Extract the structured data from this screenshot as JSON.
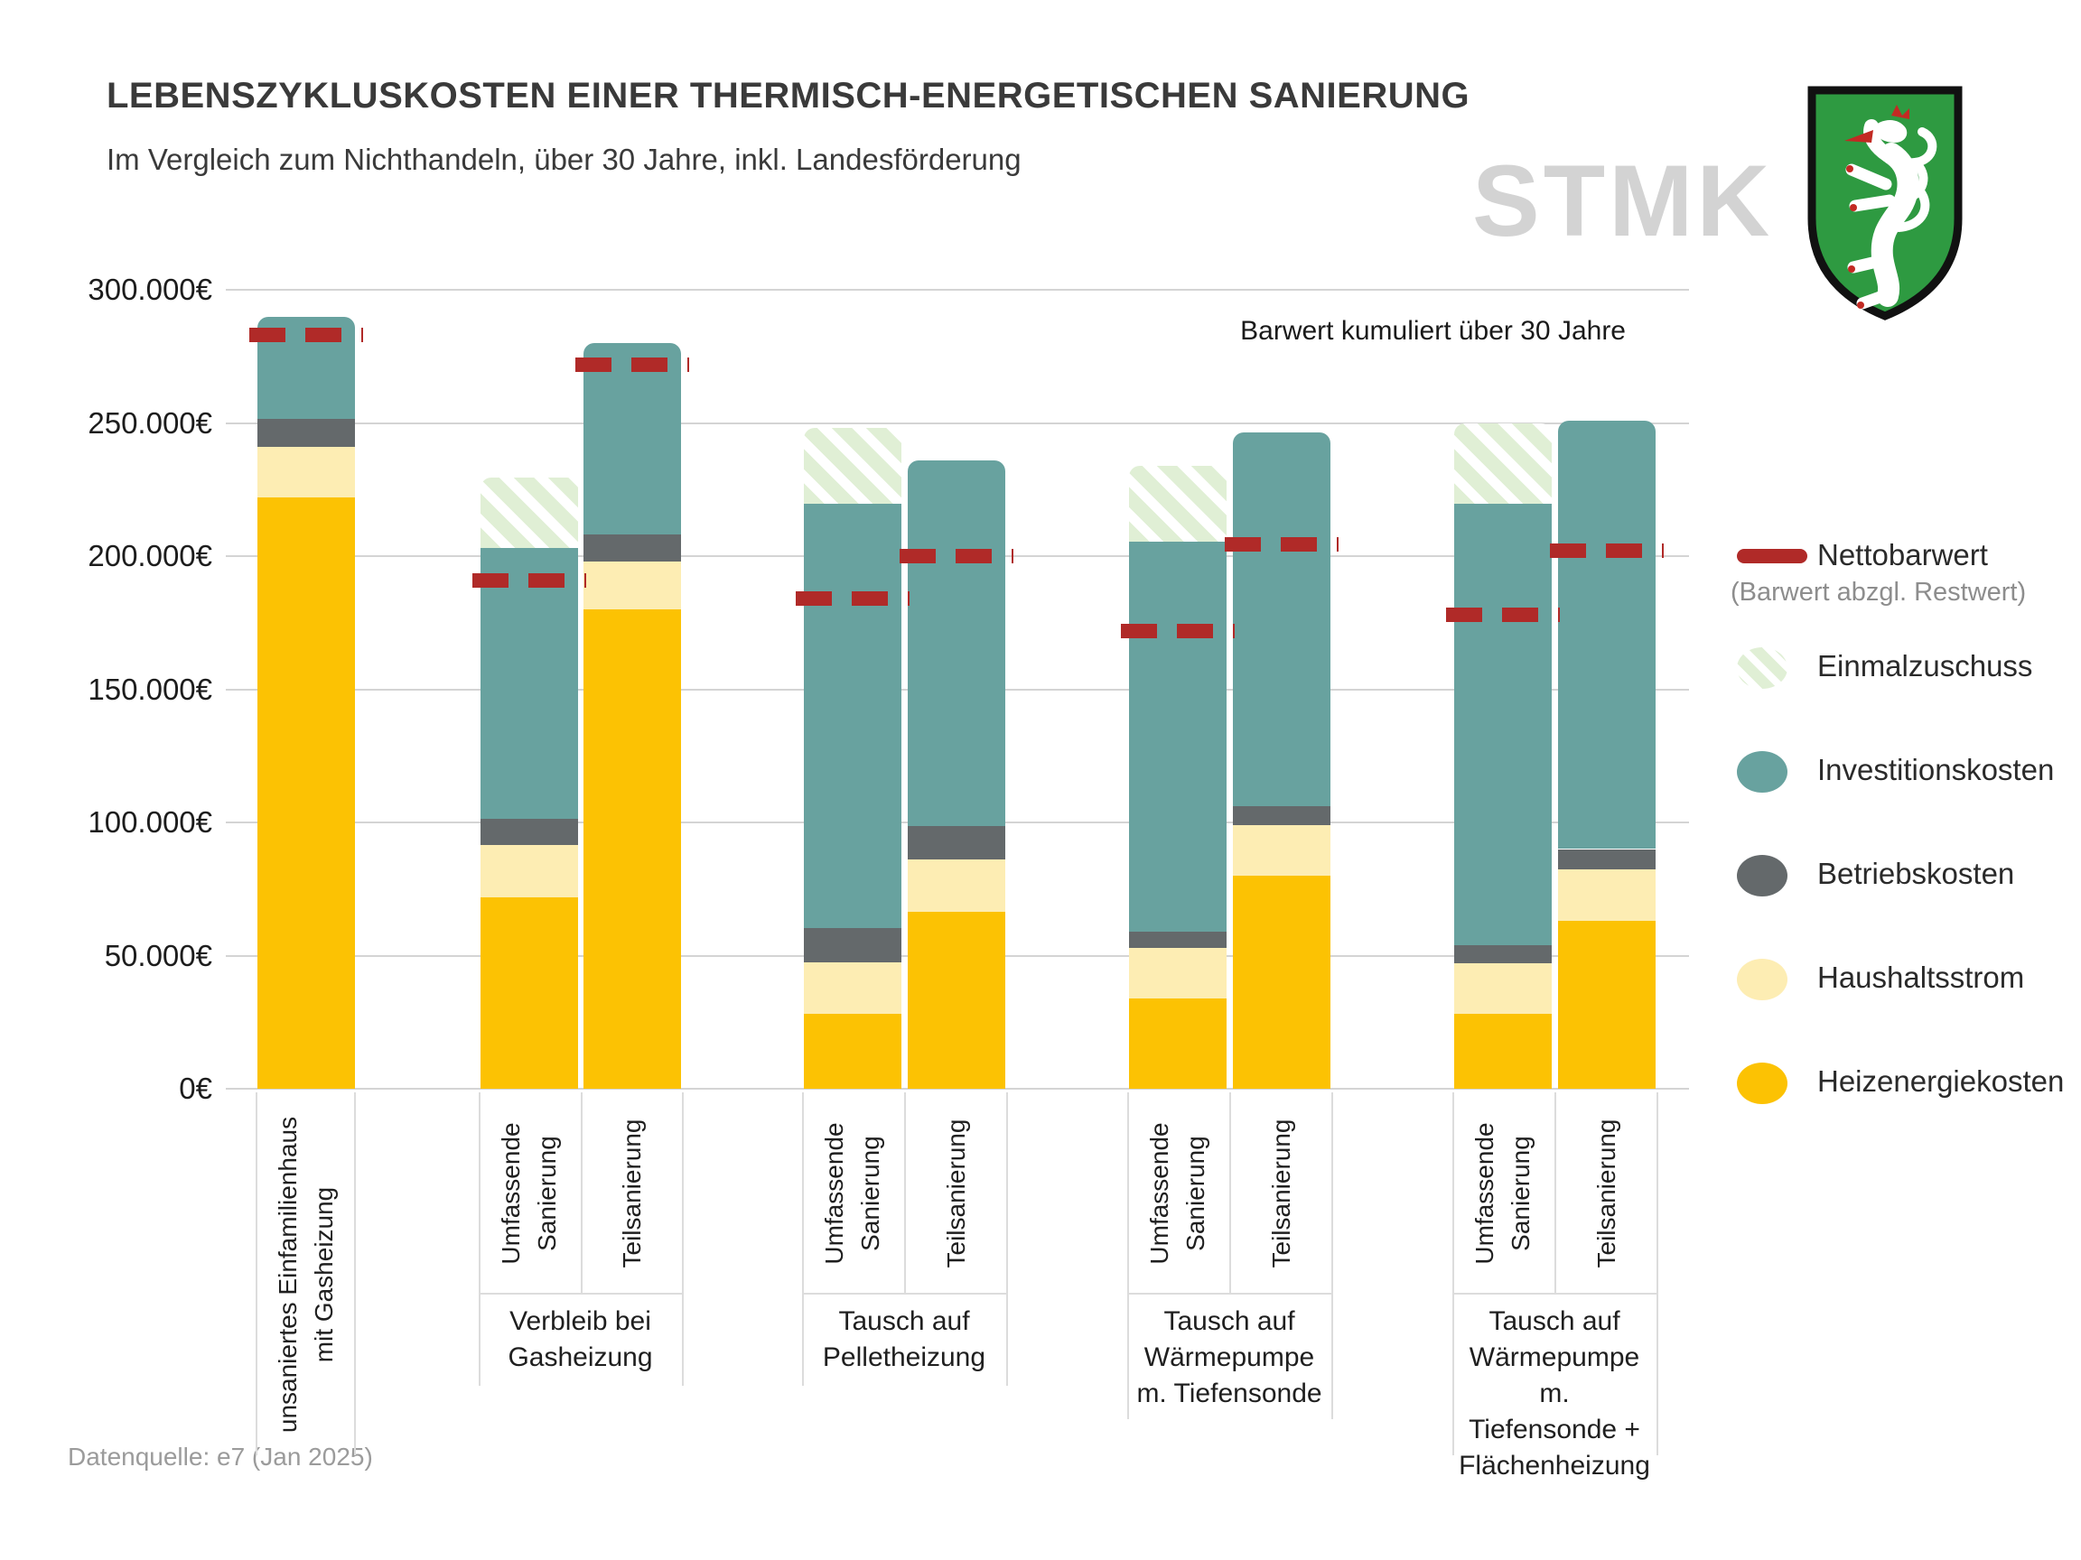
{
  "chart_data": {
    "type": "bar",
    "stacked": true,
    "title": "LEBENSZYKLUSKOSTEN EINER THERMISCH-ENERGETISCHEN SANIERUNG",
    "subtitle": "Im Vergleich zum Nichthandeln, über 30 Jahre, inkl. Landesförderung",
    "watermark": "STMK",
    "annotation": "Barwert kumuliert über 30 Jahre",
    "source": "Datenquelle: e7 (Jan 2025)",
    "unit": "EUR",
    "ylim": [
      0,
      300000
    ],
    "grid": true,
    "y_ticks": [
      {
        "value": 300000,
        "label": "300.000€"
      },
      {
        "value": 250000,
        "label": "250.000€"
      },
      {
        "value": 200000,
        "label": "200.000€"
      },
      {
        "value": 150000,
        "label": "150.000€"
      },
      {
        "value": 100000,
        "label": "100.000€"
      },
      {
        "value": 50000,
        "label": "50.000€"
      },
      {
        "value": 0,
        "label": "0€"
      }
    ],
    "segments": [
      {
        "key": "heizenergiekosten",
        "label": "Heizenergiekosten",
        "color": "#fcc203",
        "pattern": "solid"
      },
      {
        "key": "haushaltsstrom",
        "label": "Haushaltsstrom",
        "color": "#fdedb3",
        "pattern": "solid"
      },
      {
        "key": "betriebskosten",
        "label": "Betriebskosten",
        "color": "#64696b",
        "pattern": "dots"
      },
      {
        "key": "investitionskosten",
        "label": "Investitionskosten",
        "color": "#68a29f",
        "pattern": "solid"
      },
      {
        "key": "einmalzuschuss",
        "label": "Einmalzuschuss",
        "color": "#e0efd5",
        "pattern": "diagonal-hatch"
      }
    ],
    "nettobarwert_legend": {
      "label": "Nettobarwert",
      "sublabel": "(Barwert abzgl. Restwert)",
      "color": "#b02a28"
    },
    "legend_position": "right",
    "groups": [
      {
        "label_lines": [],
        "bars": [
          {
            "name": "unsaniertes Einfamilienhaus mit Gasheizung",
            "label_lines": [
              "unsaniertes Einfamilienhaus",
              "mit Gasheizung"
            ],
            "values": {
              "heizenergiekosten": 222000,
              "haushaltsstrom": 19000,
              "betriebskosten": 10500,
              "investitionskosten": 38500,
              "einmalzuschuss": 0
            },
            "barwert_total": 290000,
            "nettobarwert": 283000
          }
        ]
      },
      {
        "label_lines": [
          "Verbleib bei",
          "Gasheizung"
        ],
        "bars": [
          {
            "name": "Umfassende Sanierung",
            "label_lines": [
              "Umfassende",
              "Sanierung"
            ],
            "values": {
              "heizenergiekosten": 72000,
              "haushaltsstrom": 19500,
              "betriebskosten": 10000,
              "investitionskosten": 101500,
              "einmalzuschuss": 26500
            },
            "barwert_total": 203000,
            "nettobarwert": 191000
          },
          {
            "name": "Teilsanierung",
            "label_lines": [
              "Teilsanierung"
            ],
            "values": {
              "heizenergiekosten": 180000,
              "haushaltsstrom": 18000,
              "betriebskosten": 10000,
              "investitionskosten": 72000,
              "einmalzuschuss": 0
            },
            "barwert_total": 280000,
            "nettobarwert": 272000
          }
        ]
      },
      {
        "label_lines": [
          "Tausch auf",
          "Pelletheizung"
        ],
        "bars": [
          {
            "name": "Umfassende Sanierung",
            "label_lines": [
              "Umfassende",
              "Sanierung"
            ],
            "values": {
              "heizenergiekosten": 28000,
              "haushaltsstrom": 19500,
              "betriebskosten": 13000,
              "investitionskosten": 159000,
              "einmalzuschuss": 28500
            },
            "barwert_total": 219500,
            "nettobarwert": 184000
          },
          {
            "name": "Teilsanierung",
            "label_lines": [
              "Teilsanierung"
            ],
            "values": {
              "heizenergiekosten": 66500,
              "haushaltsstrom": 19500,
              "betriebskosten": 12500,
              "investitionskosten": 137500,
              "einmalzuschuss": 0
            },
            "barwert_total": 236000,
            "nettobarwert": 200000
          }
        ]
      },
      {
        "label_lines": [
          "Tausch auf",
          "Wärmepumpe",
          "m. Tiefensonde"
        ],
        "bars": [
          {
            "name": "Umfassende Sanierung",
            "label_lines": [
              "Umfassende",
              "Sanierung"
            ],
            "values": {
              "heizenergiekosten": 34000,
              "haushaltsstrom": 19000,
              "betriebskosten": 6000,
              "investitionskosten": 146500,
              "einmalzuschuss": 28500
            },
            "barwert_total": 205500,
            "nettobarwert": 172000
          },
          {
            "name": "Teilsanierung",
            "label_lines": [
              "Teilsanierung"
            ],
            "values": {
              "heizenergiekosten": 80000,
              "haushaltsstrom": 19000,
              "betriebskosten": 7000,
              "investitionskosten": 140500,
              "einmalzuschuss": 0
            },
            "barwert_total": 246500,
            "nettobarwert": 204500
          }
        ]
      },
      {
        "label_lines": [
          "Tausch auf",
          "Wärmepumpe m.",
          "Tiefensonde +",
          "Flächenheizung"
        ],
        "bars": [
          {
            "name": "Umfassende Sanierung",
            "label_lines": [
              "Umfassende",
              "Sanierung"
            ],
            "values": {
              "heizenergiekosten": 28000,
              "haushaltsstrom": 19000,
              "betriebskosten": 7000,
              "investitionskosten": 165500,
              "einmalzuschuss": 30500
            },
            "barwert_total": 219500,
            "nettobarwert": 178000
          },
          {
            "name": "Teilsanierung",
            "label_lines": [
              "Teilsanierung"
            ],
            "values": {
              "heizenergiekosten": 63000,
              "haushaltsstrom": 19500,
              "betriebskosten": 7500,
              "investitionskosten": 161000,
              "einmalzuschuss": 0
            },
            "barwert_total": 251000,
            "nettobarwert": 202000
          }
        ]
      }
    ]
  }
}
